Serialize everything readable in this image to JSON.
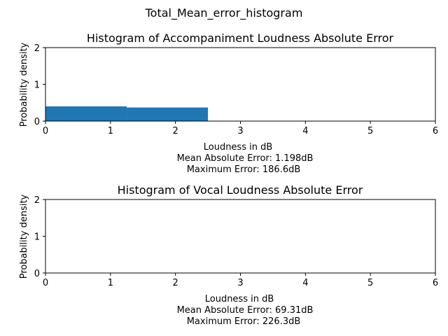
{
  "figure_title": "Total_Mean_error_histogram",
  "colors": {
    "bar": "#1f77b4",
    "axis": "#000000"
  },
  "chart_data": [
    {
      "type": "bar",
      "title": "Histogram of Accompaniment Loudness Absolute Error",
      "xlabel": "Loudness in dB",
      "xlabel_lines": [
        "Mean Absolute Error: 1.198dB",
        "Maximum Error: 186.6dB"
      ],
      "ylabel": "Probability density",
      "xlim": [
        0,
        6
      ],
      "ylim": [
        0,
        2
      ],
      "xticks": [
        "0",
        "1",
        "2",
        "3",
        "4",
        "5",
        "6"
      ],
      "yticks": [
        "0",
        "1",
        "2"
      ],
      "bins": [
        {
          "x0": 0,
          "x1": 1.25,
          "value": 0.4
        },
        {
          "x0": 1.25,
          "x1": 2.5,
          "value": 0.37
        }
      ]
    },
    {
      "type": "bar",
      "title": "Histogram of Vocal Loudness Absolute Error",
      "xlabel": "Loudness in dB",
      "xlabel_lines": [
        "Mean Absolute Error: 69.31dB",
        "Maximum Error: 226.3dB"
      ],
      "ylabel": "Probability density",
      "xlim": [
        0,
        6
      ],
      "ylim": [
        0,
        2
      ],
      "xticks": [
        "0",
        "1",
        "2",
        "3",
        "4",
        "5",
        "6"
      ],
      "yticks": [
        "0",
        "1",
        "2"
      ],
      "bins": []
    }
  ]
}
